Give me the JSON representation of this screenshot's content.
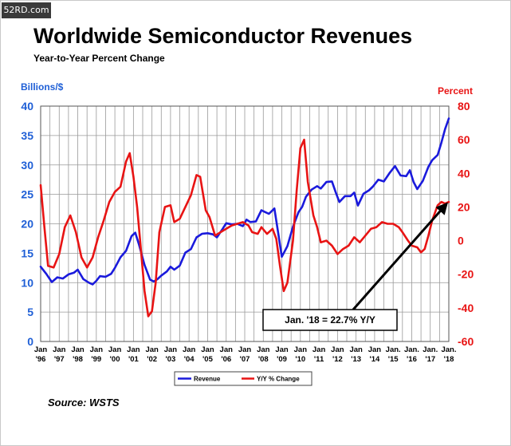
{
  "watermark": "52RD.com",
  "header": {
    "title": "Worldwide Semiconductor Revenues",
    "subtitle": "Year-to-Year Percent Change"
  },
  "source": "Source: WSTS",
  "colors": {
    "revenue": "#1a1adc",
    "yoy": "#e81414",
    "left_axis": "#1f5fd6",
    "right_axis": "#e81414",
    "grid": "#999999"
  },
  "chart_data": {
    "type": "line",
    "y_left": {
      "label": "Billions/$",
      "range": [
        0,
        40
      ],
      "ticks": [
        "0",
        "5",
        "10",
        "15",
        "20",
        "25",
        "30",
        "35",
        "40"
      ]
    },
    "y_right": {
      "label": "Percent",
      "range": [
        -60,
        80
      ],
      "ticks": [
        "-60",
        "-40",
        "-20",
        "0",
        "20",
        "40",
        "60",
        "80"
      ]
    },
    "x": {
      "range": [
        1996.0,
        2018.0
      ],
      "ticks": [
        {
          "top": "Jan",
          "bottom": "'96"
        },
        {
          "top": "Jan",
          "bottom": "'97"
        },
        {
          "top": "Jan",
          "bottom": "'98"
        },
        {
          "top": "Jan",
          "bottom": "'99"
        },
        {
          "top": "Jan",
          "bottom": "'00"
        },
        {
          "top": "Jan",
          "bottom": "'01"
        },
        {
          "top": "Jan",
          "bottom": "'02"
        },
        {
          "top": "Jan",
          "bottom": "'03"
        },
        {
          "top": "Jan",
          "bottom": "'04"
        },
        {
          "top": "Jan",
          "bottom": "'05"
        },
        {
          "top": "Jan",
          "bottom": "'06"
        },
        {
          "top": "Jan",
          "bottom": "'07"
        },
        {
          "top": "Jan",
          "bottom": "'08"
        },
        {
          "top": "Jan",
          "bottom": "'09"
        },
        {
          "top": "Jan",
          "bottom": "'10"
        },
        {
          "top": "Jan",
          "bottom": "'11"
        },
        {
          "top": "Jan",
          "bottom": "'12"
        },
        {
          "top": "Jan",
          "bottom": "'13"
        },
        {
          "top": "Jan",
          "bottom": "'14"
        },
        {
          "top": "Jan.",
          "bottom": "'15"
        },
        {
          "top": "Jan.",
          "bottom": "'16"
        },
        {
          "top": "Jan.",
          "bottom": "'17"
        },
        {
          "top": "Jan.",
          "bottom": "'18"
        }
      ]
    },
    "grid": true,
    "legend_position": "bottom",
    "series": [
      {
        "name": "Revenue",
        "axis": "left",
        "points": [
          [
            1996.0,
            12.7
          ],
          [
            1996.3,
            11.5
          ],
          [
            1996.6,
            10.1
          ],
          [
            1996.9,
            10.9
          ],
          [
            1997.2,
            10.7
          ],
          [
            1997.5,
            11.4
          ],
          [
            1997.8,
            11.7
          ],
          [
            1998.0,
            12.2
          ],
          [
            1998.3,
            10.6
          ],
          [
            1998.6,
            10.0
          ],
          [
            1998.8,
            9.7
          ],
          [
            1999.0,
            10.3
          ],
          [
            1999.2,
            11.1
          ],
          [
            1999.5,
            11.0
          ],
          [
            1999.8,
            11.5
          ],
          [
            2000.0,
            12.5
          ],
          [
            2000.3,
            14.3
          ],
          [
            2000.6,
            15.4
          ],
          [
            2000.9,
            17.9
          ],
          [
            2001.1,
            18.5
          ],
          [
            2001.3,
            16.5
          ],
          [
            2001.6,
            13.0
          ],
          [
            2001.9,
            10.5
          ],
          [
            2002.1,
            10.2
          ],
          [
            2002.3,
            10.6
          ],
          [
            2002.5,
            11.2
          ],
          [
            2002.8,
            11.9
          ],
          [
            2003.0,
            12.7
          ],
          [
            2003.2,
            12.2
          ],
          [
            2003.5,
            12.9
          ],
          [
            2003.8,
            15.1
          ],
          [
            2004.1,
            15.7
          ],
          [
            2004.4,
            17.7
          ],
          [
            2004.7,
            18.3
          ],
          [
            2005.0,
            18.4
          ],
          [
            2005.3,
            18.2
          ],
          [
            2005.5,
            17.7
          ],
          [
            2005.8,
            19.1
          ],
          [
            2006.0,
            20.1
          ],
          [
            2006.3,
            19.9
          ],
          [
            2006.6,
            20.0
          ],
          [
            2006.9,
            19.6
          ],
          [
            2007.1,
            20.7
          ],
          [
            2007.3,
            20.3
          ],
          [
            2007.6,
            20.4
          ],
          [
            2007.9,
            22.3
          ],
          [
            2008.1,
            22.0
          ],
          [
            2008.3,
            21.7
          ],
          [
            2008.6,
            22.6
          ],
          [
            2008.8,
            18.5
          ],
          [
            2009.0,
            14.4
          ],
          [
            2009.3,
            16.2
          ],
          [
            2009.6,
            19.5
          ],
          [
            2009.9,
            22.0
          ],
          [
            2010.1,
            22.9
          ],
          [
            2010.3,
            24.6
          ],
          [
            2010.6,
            25.8
          ],
          [
            2010.9,
            26.4
          ],
          [
            2011.1,
            26.0
          ],
          [
            2011.4,
            27.1
          ],
          [
            2011.7,
            27.2
          ],
          [
            2011.9,
            25.4
          ],
          [
            2012.1,
            23.7
          ],
          [
            2012.4,
            24.7
          ],
          [
            2012.7,
            24.7
          ],
          [
            2012.9,
            25.3
          ],
          [
            2013.1,
            23.1
          ],
          [
            2013.4,
            25.1
          ],
          [
            2013.7,
            25.7
          ],
          [
            2013.9,
            26.3
          ],
          [
            2014.2,
            27.5
          ],
          [
            2014.5,
            27.2
          ],
          [
            2014.8,
            28.6
          ],
          [
            2015.1,
            29.8
          ],
          [
            2015.4,
            28.2
          ],
          [
            2015.7,
            28.1
          ],
          [
            2015.9,
            29.1
          ],
          [
            2016.1,
            27.1
          ],
          [
            2016.3,
            25.9
          ],
          [
            2016.6,
            27.3
          ],
          [
            2016.9,
            29.7
          ],
          [
            2017.1,
            30.8
          ],
          [
            2017.4,
            31.7
          ],
          [
            2017.6,
            33.8
          ],
          [
            2017.8,
            36.1
          ],
          [
            2018.0,
            37.9
          ]
        ]
      },
      {
        "name": "Y/Y % Change",
        "axis": "right",
        "points": [
          [
            1996.0,
            33
          ],
          [
            1996.2,
            8
          ],
          [
            1996.4,
            -15
          ],
          [
            1996.7,
            -16
          ],
          [
            1997.0,
            -8
          ],
          [
            1997.3,
            8
          ],
          [
            1997.6,
            15
          ],
          [
            1997.9,
            5
          ],
          [
            1998.2,
            -10
          ],
          [
            1998.5,
            -16
          ],
          [
            1998.8,
            -10
          ],
          [
            1999.1,
            2
          ],
          [
            1999.4,
            12
          ],
          [
            1999.7,
            23
          ],
          [
            2000.0,
            29
          ],
          [
            2000.3,
            32
          ],
          [
            2000.6,
            47
          ],
          [
            2000.8,
            52
          ],
          [
            2001.0,
            38
          ],
          [
            2001.2,
            20
          ],
          [
            2001.4,
            -5
          ],
          [
            2001.6,
            -30
          ],
          [
            2001.8,
            -45
          ],
          [
            2002.0,
            -42
          ],
          [
            2002.2,
            -25
          ],
          [
            2002.4,
            5
          ],
          [
            2002.7,
            20
          ],
          [
            2003.0,
            21
          ],
          [
            2003.2,
            11
          ],
          [
            2003.5,
            13
          ],
          [
            2003.8,
            20
          ],
          [
            2004.1,
            27
          ],
          [
            2004.4,
            39
          ],
          [
            2004.6,
            38
          ],
          [
            2004.9,
            18
          ],
          [
            2005.1,
            14
          ],
          [
            2005.4,
            3
          ],
          [
            2005.7,
            5
          ],
          [
            2006.0,
            7
          ],
          [
            2006.3,
            9
          ],
          [
            2006.6,
            10
          ],
          [
            2006.9,
            11
          ],
          [
            2007.2,
            9
          ],
          [
            2007.4,
            5
          ],
          [
            2007.7,
            4
          ],
          [
            2007.9,
            8
          ],
          [
            2008.2,
            4
          ],
          [
            2008.5,
            7
          ],
          [
            2008.7,
            1
          ],
          [
            2008.9,
            -15
          ],
          [
            2009.1,
            -30
          ],
          [
            2009.3,
            -25
          ],
          [
            2009.6,
            0
          ],
          [
            2009.8,
            30
          ],
          [
            2010.0,
            55
          ],
          [
            2010.2,
            60
          ],
          [
            2010.4,
            35
          ],
          [
            2010.7,
            15
          ],
          [
            2010.9,
            8
          ],
          [
            2011.1,
            -1
          ],
          [
            2011.4,
            0
          ],
          [
            2011.7,
            -3
          ],
          [
            2012.0,
            -8
          ],
          [
            2012.3,
            -5
          ],
          [
            2012.6,
            -3
          ],
          [
            2012.9,
            2
          ],
          [
            2013.2,
            -1
          ],
          [
            2013.5,
            3
          ],
          [
            2013.8,
            7
          ],
          [
            2014.1,
            8
          ],
          [
            2014.4,
            11
          ],
          [
            2014.7,
            10
          ],
          [
            2015.0,
            10
          ],
          [
            2015.3,
            8
          ],
          [
            2015.5,
            5
          ],
          [
            2015.8,
            0
          ],
          [
            2016.0,
            -3
          ],
          [
            2016.3,
            -4
          ],
          [
            2016.5,
            -7
          ],
          [
            2016.7,
            -5
          ],
          [
            2016.9,
            3
          ],
          [
            2017.1,
            12
          ],
          [
            2017.4,
            21
          ],
          [
            2017.6,
            23
          ],
          [
            2017.8,
            22
          ],
          [
            2018.0,
            23
          ]
        ]
      }
    ],
    "annotation": {
      "text": "Jan. '18 = 22.7% Y/Y",
      "x": 2018.0,
      "value": 22.7,
      "axis": "right"
    }
  }
}
